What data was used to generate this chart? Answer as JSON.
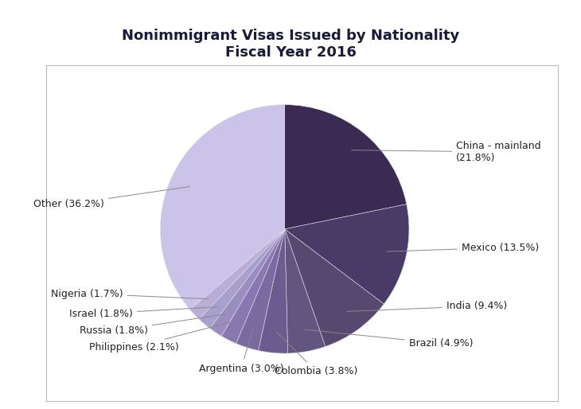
{
  "title": "Nonimmigrant Visas Issued by Nationality\nFiscal Year 2016",
  "labels_raw": [
    "China - mainland\n(21.8%)",
    "Mexico (13.5%)",
    "India (9.4%)",
    "Brazil (4.9%)",
    "Colombia (3.8%)",
    "Argentina (3.0%)",
    "Philippines (2.1%)",
    "Russia (1.8%)",
    "Israel (1.8%)",
    "Nigeria (1.7%)",
    "Other (36.2%)"
  ],
  "values": [
    21.8,
    13.5,
    9.4,
    4.9,
    3.8,
    3.0,
    2.1,
    1.8,
    1.8,
    1.7,
    36.2
  ],
  "colors": [
    "#3b2a52",
    "#4a3a68",
    "#574870",
    "#625680",
    "#6b5b8e",
    "#7a6aa0",
    "#8878b0",
    "#9a8ec0",
    "#a8a0cc",
    "#baaed8",
    "#ccc4e8"
  ],
  "startangle": 90,
  "title_fontsize": 13,
  "label_fontsize": 9,
  "background_color": "#ffffff",
  "box_facecolor": "#ffffff",
  "box_edgecolor": "#bbbbbb"
}
